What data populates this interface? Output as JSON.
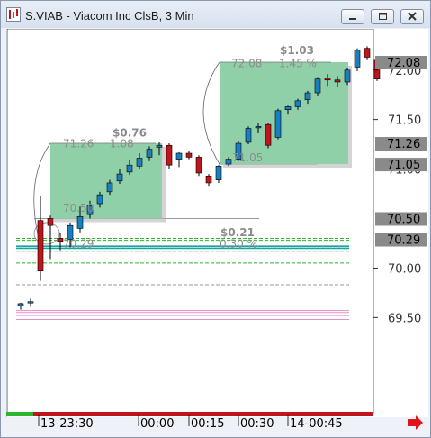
{
  "window": {
    "title": "S.VIAB - Viacom Inc ClsB, 3 Min",
    "buttons": [
      "minimize",
      "maximize",
      "close"
    ]
  },
  "price_axis": {
    "ticks": [
      "72.00",
      "71.50",
      "71.00",
      "70.00",
      "69.50"
    ],
    "tags": [
      {
        "label": "72.08",
        "value": 72.08
      },
      {
        "label": "71.26",
        "value": 71.26
      },
      {
        "label": "71.05",
        "value": 71.05
      },
      {
        "label": "70.50",
        "value": 70.5
      },
      {
        "label": "70.29",
        "value": 70.29
      }
    ]
  },
  "time_axis": {
    "labels": [
      "13-23:30",
      "00:00",
      "00:15",
      "00:30",
      "14-00:45"
    ]
  },
  "boxes": [
    {
      "low_label": "71.26",
      "pct_label": "1.08",
      "change_label": "$0.76",
      "bottom_label": "70.50"
    },
    {
      "low_label": "72.08",
      "pct_label": "1.45 %",
      "change_label": "$1.03",
      "bottom_label": "71.05"
    }
  ],
  "annotation": {
    "change_label": "$0.21",
    "pct_label": "0.30 %",
    "low_label": "70.29"
  },
  "colors": {
    "up": "#1a7fc1",
    "down": "#c0151b",
    "box_fill": "#8fd0a8",
    "accent_arrow": "#e0151b"
  },
  "chart_data": {
    "type": "candlestick",
    "series": [
      {
        "o": 69.62,
        "h": 69.65,
        "l": 69.58,
        "c": 69.64
      },
      {
        "o": 69.65,
        "h": 69.69,
        "l": 69.61,
        "c": 69.66
      },
      {
        "o": 70.48,
        "h": 70.73,
        "l": 69.87,
        "c": 69.97
      },
      {
        "o": 70.5,
        "h": 70.53,
        "l": 70.09,
        "c": 70.43
      },
      {
        "o": 70.3,
        "h": 70.36,
        "l": 70.18,
        "c": 70.27
      },
      {
        "o": 70.29,
        "h": 70.46,
        "l": 70.21,
        "c": 70.43
      },
      {
        "o": 70.4,
        "h": 70.62,
        "l": 70.36,
        "c": 70.52
      },
      {
        "o": 70.54,
        "h": 70.68,
        "l": 70.5,
        "c": 70.63
      },
      {
        "o": 70.65,
        "h": 70.77,
        "l": 70.61,
        "c": 70.74
      },
      {
        "o": 70.77,
        "h": 70.89,
        "l": 70.74,
        "c": 70.86
      },
      {
        "o": 70.88,
        "h": 71.0,
        "l": 70.85,
        "c": 70.95
      },
      {
        "o": 70.97,
        "h": 71.09,
        "l": 70.94,
        "c": 71.04
      },
      {
        "o": 71.03,
        "h": 71.16,
        "l": 71.0,
        "c": 71.11
      },
      {
        "o": 71.12,
        "h": 71.23,
        "l": 71.08,
        "c": 71.2
      },
      {
        "o": 71.22,
        "h": 71.27,
        "l": 71.14,
        "c": 71.24
      },
      {
        "o": 71.24,
        "h": 71.26,
        "l": 71.0,
        "c": 71.04
      },
      {
        "o": 71.1,
        "h": 71.17,
        "l": 71.02,
        "c": 71.16
      },
      {
        "o": 71.16,
        "h": 71.18,
        "l": 71.1,
        "c": 71.12
      },
      {
        "o": 71.12,
        "h": 71.14,
        "l": 70.93,
        "c": 70.96
      },
      {
        "o": 70.93,
        "h": 70.95,
        "l": 70.83,
        "c": 70.86
      },
      {
        "o": 70.89,
        "h": 71.04,
        "l": 70.86,
        "c": 71.03
      },
      {
        "o": 71.05,
        "h": 71.12,
        "l": 71.03,
        "c": 71.1
      },
      {
        "o": 71.1,
        "h": 71.28,
        "l": 71.08,
        "c": 71.26
      },
      {
        "o": 71.27,
        "h": 71.43,
        "l": 71.25,
        "c": 71.41
      },
      {
        "o": 71.42,
        "h": 71.46,
        "l": 71.36,
        "c": 71.43
      },
      {
        "o": 71.45,
        "h": 71.47,
        "l": 71.21,
        "c": 71.24
      },
      {
        "o": 71.32,
        "h": 71.61,
        "l": 71.3,
        "c": 71.59
      },
      {
        "o": 71.6,
        "h": 71.64,
        "l": 71.55,
        "c": 71.63
      },
      {
        "o": 71.63,
        "h": 71.71,
        "l": 71.6,
        "c": 71.69
      },
      {
        "o": 71.7,
        "h": 71.79,
        "l": 71.66,
        "c": 71.77
      },
      {
        "o": 71.77,
        "h": 71.93,
        "l": 71.74,
        "c": 71.91
      },
      {
        "o": 71.92,
        "h": 71.96,
        "l": 71.84,
        "c": 71.9
      },
      {
        "o": 71.9,
        "h": 71.94,
        "l": 71.83,
        "c": 71.88
      },
      {
        "o": 71.88,
        "h": 72.02,
        "l": 71.85,
        "c": 72.0
      },
      {
        "o": 72.03,
        "h": 72.22,
        "l": 71.99,
        "c": 72.2
      },
      {
        "o": 72.22,
        "h": 72.24,
        "l": 72.1,
        "c": 72.13
      },
      {
        "o": 72.1,
        "h": 72.12,
        "l": 71.89,
        "c": 71.91
      }
    ],
    "ylim": [
      69.45,
      72.32
    ],
    "grid": false
  }
}
